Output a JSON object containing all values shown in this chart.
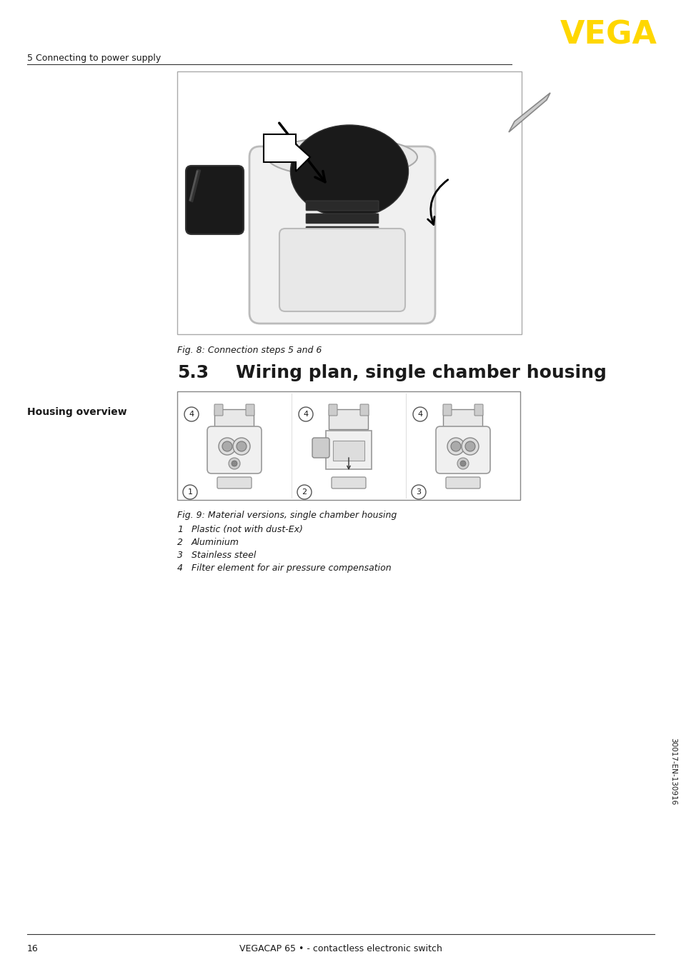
{
  "page_number": "16",
  "footer_text": "VEGACAP 65 • - contactless electronic switch",
  "header_section": "5 Connecting to power supply",
  "vega_logo": "VEGA",
  "vega_color": "#FFD700",
  "section_number": "5.3",
  "section_title": "Wiring plan, single chamber housing",
  "sidebar_label": "Housing overview",
  "fig8_caption": "Fig. 8: Connection steps 5 and 6",
  "fig9_caption": "Fig. 9: Material versions, single chamber housing",
  "list_items": [
    [
      "1",
      "Plastic (not with dust-Ex)"
    ],
    [
      "2",
      "Aluminium"
    ],
    [
      "3",
      "Stainless steel"
    ],
    [
      "4",
      "Filter element for air pressure compensation"
    ]
  ],
  "vertical_text": "30017-EN-130916",
  "bg_color": "#ffffff",
  "text_color": "#1a1a1a",
  "gray_text": "#444444",
  "line_color": "#333333",
  "fig_border": "#888888",
  "fig_bg": "#ffffff",
  "fig9_inner_bg": "#f0f0f0"
}
